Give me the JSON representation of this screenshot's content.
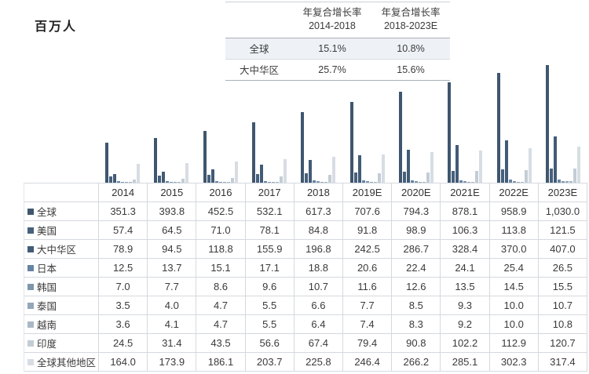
{
  "unit_label": "百万人",
  "cagr_table": {
    "headers": [
      {
        "title": "年复合增长率",
        "range": "2014-2018"
      },
      {
        "title": "年复合增长率",
        "range": "2018-2023E"
      }
    ],
    "rows": [
      {
        "label": "全球",
        "values": [
          "15.1%",
          "10.8%"
        ],
        "highlight": true
      },
      {
        "label": "大中华区",
        "values": [
          "25.7%",
          "15.6%"
        ],
        "highlight": false
      }
    ]
  },
  "chart_data": {
    "type": "bar",
    "title": "",
    "ylabel": "百万人",
    "xlabel": "",
    "ylim": [
      0,
      1030
    ],
    "grid": false,
    "legend_position": "table-left-column",
    "categories": [
      "2014",
      "2015",
      "2016",
      "2017",
      "2018",
      "2019E",
      "2020E",
      "2021E",
      "2022E",
      "2023E"
    ],
    "series": [
      {
        "name": "全球",
        "color": "#3f566e",
        "values": [
          351.3,
          393.8,
          452.5,
          532.1,
          617.3,
          707.6,
          794.3,
          878.1,
          958.9,
          1030.0
        ]
      },
      {
        "name": "美国",
        "color": "#47607c",
        "values": [
          57.4,
          64.5,
          71.0,
          78.1,
          84.8,
          91.8,
          98.9,
          106.3,
          113.8,
          121.5
        ]
      },
      {
        "name": "大中华区",
        "color": "#425b76",
        "values": [
          78.9,
          94.5,
          118.8,
          155.9,
          196.8,
          242.5,
          286.7,
          328.4,
          370.0,
          407.0
        ]
      },
      {
        "name": "日本",
        "color": "#6684a2",
        "values": [
          12.5,
          13.7,
          15.1,
          17.1,
          18.8,
          20.6,
          22.4,
          24.1,
          25.4,
          26.5
        ]
      },
      {
        "name": "韩国",
        "color": "#7f96ab",
        "values": [
          7.0,
          7.7,
          8.6,
          9.6,
          10.7,
          11.6,
          12.6,
          13.5,
          14.5,
          15.5
        ]
      },
      {
        "name": "泰国",
        "color": "#93a7ba",
        "values": [
          3.5,
          4.0,
          4.7,
          5.5,
          6.6,
          7.7,
          8.5,
          9.3,
          10.0,
          10.7
        ]
      },
      {
        "name": "越南",
        "color": "#aab8c6",
        "values": [
          3.6,
          4.1,
          4.7,
          5.5,
          6.4,
          7.4,
          8.3,
          9.2,
          10.0,
          10.8
        ]
      },
      {
        "name": "印度",
        "color": "#c3cdd6",
        "values": [
          24.5,
          31.4,
          43.5,
          56.6,
          67.4,
          79.4,
          90.8,
          102.2,
          112.9,
          120.7
        ]
      },
      {
        "name": "全球其他地区",
        "color": "#d7dde3",
        "values": [
          164.0,
          173.9,
          186.1,
          203.7,
          225.8,
          246.4,
          266.2,
          285.1,
          302.3,
          317.4
        ]
      }
    ]
  },
  "table": {
    "corner_label": "",
    "year_headers": [
      "2014",
      "2015",
      "2016",
      "2017",
      "2018",
      "2019E",
      "2020E",
      "2021E",
      "2022E",
      "2023E"
    ],
    "rows": [
      {
        "label": "全球",
        "swatch": "#3f566e",
        "values": [
          "351.3",
          "393.8",
          "452.5",
          "532.1",
          "617.3",
          "707.6",
          "794.3",
          "878.1",
          "958.9",
          "1,030.0"
        ]
      },
      {
        "label": "美国",
        "swatch": "#47607c",
        "values": [
          "57.4",
          "64.5",
          "71.0",
          "78.1",
          "84.8",
          "91.8",
          "98.9",
          "106.3",
          "113.8",
          "121.5"
        ]
      },
      {
        "label": "大中华区",
        "swatch": "#425b76",
        "values": [
          "78.9",
          "94.5",
          "118.8",
          "155.9",
          "196.8",
          "242.5",
          "286.7",
          "328.4",
          "370.0",
          "407.0"
        ]
      },
      {
        "label": "日本",
        "swatch": "#6684a2",
        "values": [
          "12.5",
          "13.7",
          "15.1",
          "17.1",
          "18.8",
          "20.6",
          "22.4",
          "24.1",
          "25.4",
          "26.5"
        ]
      },
      {
        "label": "韩国",
        "swatch": "#7f96ab",
        "values": [
          "7.0",
          "7.7",
          "8.6",
          "9.6",
          "10.7",
          "11.6",
          "12.6",
          "13.5",
          "14.5",
          "15.5"
        ]
      },
      {
        "label": "泰国",
        "swatch": "#93a7ba",
        "values": [
          "3.5",
          "4.0",
          "4.7",
          "5.5",
          "6.6",
          "7.7",
          "8.5",
          "9.3",
          "10.0",
          "10.7"
        ]
      },
      {
        "label": "越南",
        "swatch": "#aab8c6",
        "values": [
          "3.6",
          "4.1",
          "4.7",
          "5.5",
          "6.4",
          "7.4",
          "8.3",
          "9.2",
          "10.0",
          "10.8"
        ]
      },
      {
        "label": "印度",
        "swatch": "#c3cdd6",
        "values": [
          "24.5",
          "31.4",
          "43.5",
          "56.6",
          "67.4",
          "79.4",
          "90.8",
          "102.2",
          "112.9",
          "120.7"
        ]
      },
      {
        "label": "全球其他地区",
        "swatch": "#d7dde3",
        "values": [
          "164.0",
          "173.9",
          "186.1",
          "203.7",
          "225.8",
          "246.4",
          "266.2",
          "285.1",
          "302.3",
          "317.4"
        ]
      }
    ]
  }
}
